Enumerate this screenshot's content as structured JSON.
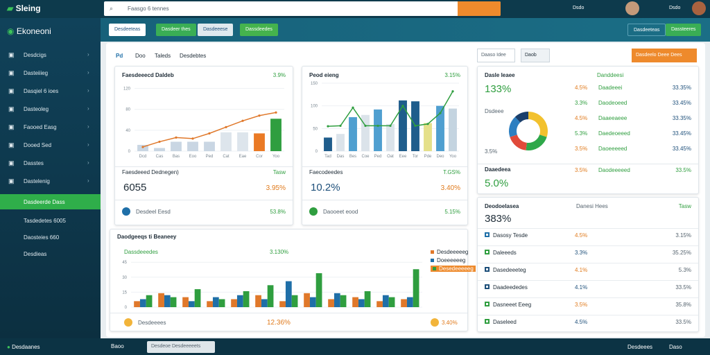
{
  "topbar": {
    "brand": "Sleing",
    "search_placeholder": "Faasgo 6 tennes",
    "items": [
      "Dsdo",
      "Dsdo"
    ]
  },
  "sidebar": {
    "title": "Ekoneoni",
    "items": [
      "Desdcigs",
      "Dasteiiieg",
      "Dasqiel 6 ioes",
      "Dasteoleg",
      "Faooed Easg",
      "Dooed Sed",
      "Dasstes",
      "Dastelenig"
    ],
    "active": "Dasdeerde Dass",
    "subitems": [
      "Tasdedetes 6005",
      "Daosteies 660",
      "Desdieas"
    ],
    "footer": "Desdaanes"
  },
  "toolbar": {
    "buttons": [
      "Desdeeteas",
      "Dasdeer thes",
      "Dasdeeese",
      "Dassdeedes"
    ],
    "right": [
      "Dasdeeteas",
      "Dassteeres"
    ]
  },
  "tabs": [
    "Pd",
    "Doo",
    "Taleds",
    "Desdebtes"
  ],
  "filter": {
    "select": "Daaso Idee",
    "option": "Daob",
    "action": "Dasdeelo Deee Dees"
  },
  "charts": [
    {
      "title": "Faesdeeecd Daldeb",
      "value_label": "3.9%",
      "ylim": [
        0,
        130
      ],
      "yticks": [
        0,
        40,
        80,
        120
      ],
      "categories": [
        "Dcd",
        "Cas",
        "Bas",
        "Eoo",
        "Ped",
        "Cat",
        "Eae",
        "Cor",
        "Yoo"
      ],
      "values": [
        12,
        6,
        18,
        18,
        18,
        36,
        36,
        34,
        62
      ],
      "colors": [
        "#c9d6e3",
        "#c9d6e3",
        "#c9d6e3",
        "#c9d6e3",
        "#c9d6e3",
        "#dde5ec",
        "#dde5ec",
        "#ea7a25",
        "#2f9e3f"
      ],
      "line": {
        "color": "#e0782a",
        "values": [
          8,
          18,
          26,
          24,
          34,
          46,
          58,
          68,
          74
        ]
      }
    },
    {
      "title": "Peod eieng",
      "value_label": "3.15%",
      "ylim": [
        0,
        150
      ],
      "yticks": [
        0,
        50,
        100,
        150
      ],
      "categories": [
        "Tad",
        "Das",
        "Bes",
        "Coe",
        "Ped",
        "Oat",
        "Eee",
        "Tor",
        "Pde",
        "Deo",
        "Yoo"
      ],
      "values": [
        30,
        38,
        75,
        80,
        92,
        60,
        112,
        110,
        62,
        100,
        94
      ],
      "colors": [
        "#1f5d8c",
        "#dbe3ea",
        "#4f9fd0",
        "#dbe3ea",
        "#4f9fd0",
        "#dbe3ea",
        "#1f5d8c",
        "#1f5d8c",
        "#e5e08a",
        "#4f9fd0",
        "#c4d4e0"
      ],
      "line": {
        "color": "#2f9e3f",
        "values": [
          55,
          56,
          96,
          56,
          56,
          56,
          100,
          56,
          60,
          84,
          132
        ]
      }
    }
  ],
  "summaries": [
    {
      "title": "Faesdeeed Dednegen)",
      "tag": "Tasw",
      "big": "6055",
      "pct": "3.95%",
      "footer": "Desdeel Eesd",
      "footer_pct": "53.8%"
    },
    {
      "title": "Faecodeedes",
      "tag": "T.GS%",
      "big": "10.2%",
      "pct": "3.40%",
      "footer": "Daooeet eood",
      "footer_pct": "5.15%"
    }
  ],
  "grouped": {
    "title": "Daodgeeqs ti Beaneey",
    "subtitle": "Dassdeeedes",
    "subtitle_pct": "3.130%",
    "ylim": [
      0,
      50
    ],
    "yticks": [
      0,
      15,
      30,
      45
    ],
    "series": [
      {
        "name": "Desdeeeeeg",
        "color": "#e0782a",
        "values": [
          6,
          14,
          10,
          6,
          8,
          12,
          6,
          14,
          8,
          10,
          6,
          8
        ]
      },
      {
        "name": "Doeeeeeeg",
        "color": "#1f6fa8",
        "values": [
          8,
          12,
          6,
          10,
          12,
          8,
          26,
          10,
          14,
          8,
          12,
          10
        ]
      },
      {
        "name": "Desedeeeeeg",
        "color": "#2f9e3f",
        "values": [
          12,
          10,
          18,
          8,
          16,
          22,
          12,
          34,
          12,
          16,
          10,
          38
        ]
      }
    ],
    "footer": "Desdeeees",
    "footer_pct": "12.36%",
    "footer_pct2": "3.40%"
  },
  "right_top": {
    "title": "Dasle Ieaee",
    "col": "Danddeesi",
    "big": "133%",
    "donut_label": "Dsdeee",
    "donut_label2": "3.5%",
    "donut": {
      "values": [
        30,
        22,
        18,
        18,
        12
      ],
      "colors": [
        "#f2c12e",
        "#2ea84a",
        "#e04a3a",
        "#2d7fc1",
        "#1a3f6b"
      ]
    },
    "rows": [
      [
        "4.5%",
        "Daadeeei",
        "33.35%"
      ],
      [
        "3.3%",
        "Daodeoeed",
        "33.45%"
      ],
      [
        "4.5%",
        "Daaeeaeee",
        "33.35%"
      ],
      [
        "5.3%",
        "Daedeoeeed",
        "33.45%"
      ],
      [
        "3.5%",
        "Daoeeeeed",
        "33.45%"
      ]
    ],
    "big2": "5.0%",
    "row_last": [
      "3.5%",
      "Daodeeeeed",
      "33.5%"
    ],
    "section2": "Daaedeea"
  },
  "right_bottom": {
    "title": "Deodoelasea",
    "col": "Danesi Hees",
    "tag": "Tasw",
    "big": "383%",
    "rows": [
      [
        "4.5%",
        "Dasosy Tesde",
        "3.15%"
      ],
      [
        "3.3%",
        "Daleeeds",
        "35.25%"
      ],
      [
        "4.1%",
        "Dasedeeeteg",
        "5.3%"
      ],
      [
        "4.1%",
        "Daadeededes",
        "33.5%"
      ],
      [
        "3.5%",
        "Dasneeet Eeeg",
        "35.8%"
      ],
      [
        "4.5%",
        "Daseleed",
        "33.5%"
      ]
    ]
  },
  "bottombar": {
    "left": "Baoo",
    "search": "Desdeoe Desdeeeeets",
    "right": [
      "Desdeees",
      "Daso"
    ]
  }
}
